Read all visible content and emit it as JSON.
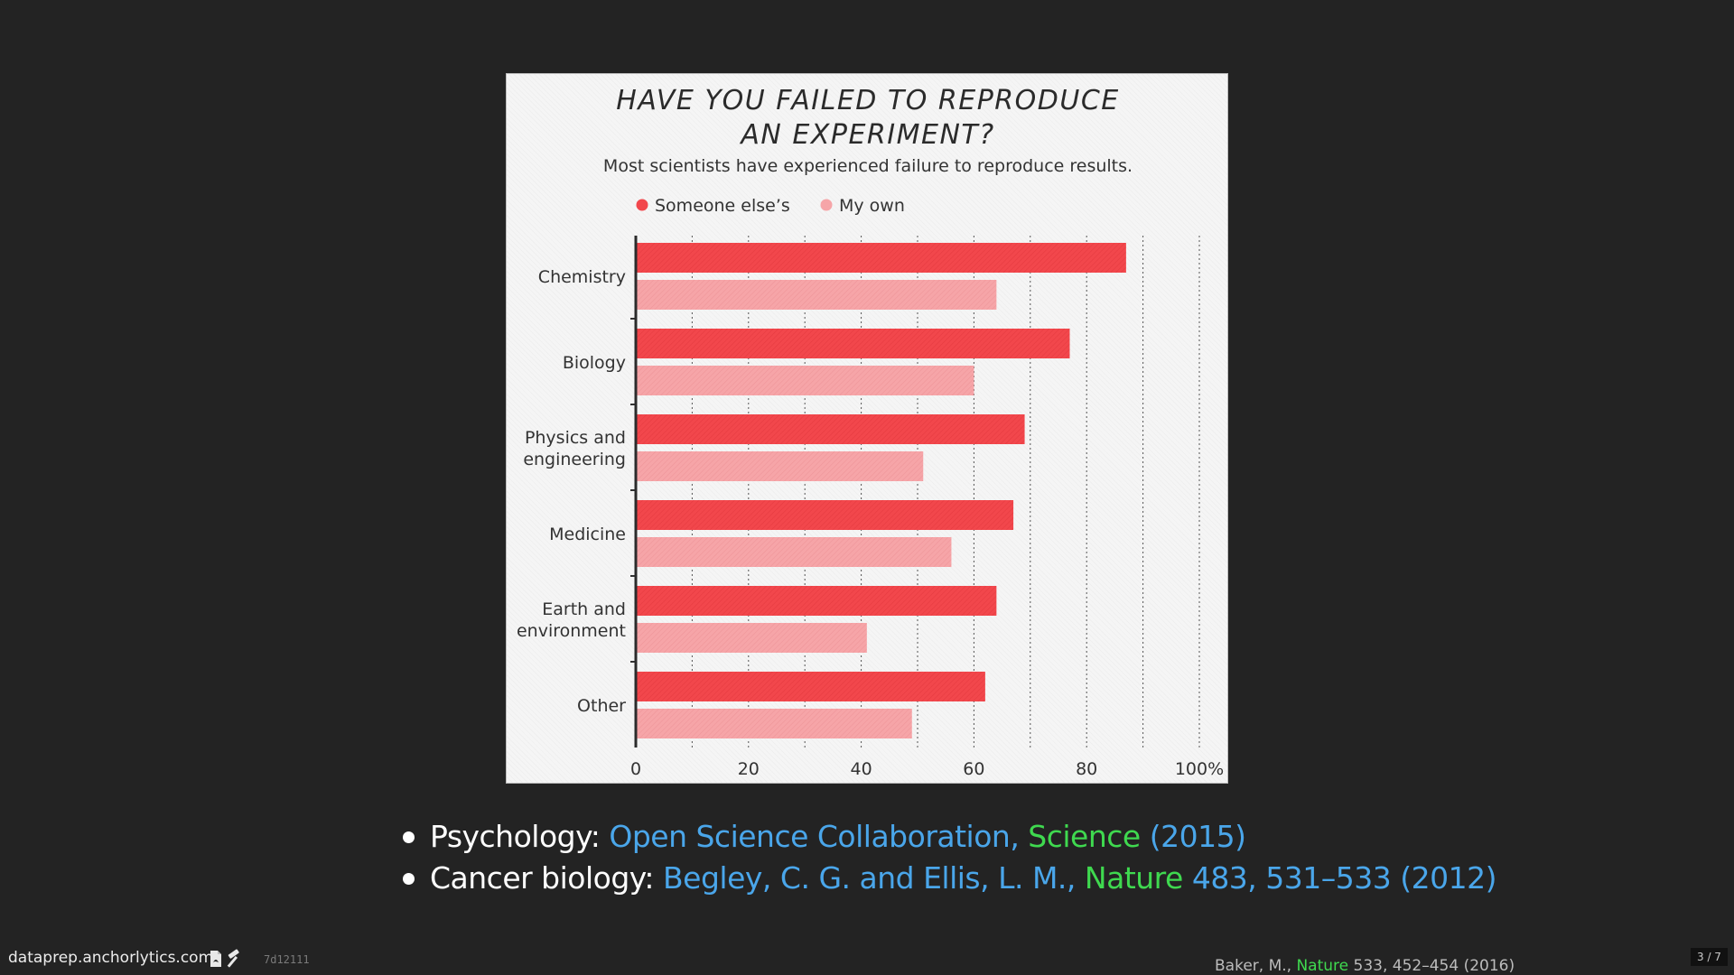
{
  "chart_data": {
    "type": "bar",
    "orientation": "horizontal",
    "title": "HAVE YOU FAILED TO REPRODUCE AN EXPERIMENT?",
    "title_lines": [
      "HAVE YOU FAILED TO REPRODUCE",
      "AN EXPERIMENT?"
    ],
    "subtitle": "Most scientists have experienced failure to reproduce results.",
    "categories": [
      [
        "Chemistry"
      ],
      [
        "Biology"
      ],
      [
        "Physics and",
        "engineering"
      ],
      [
        "Medicine"
      ],
      [
        "Earth and",
        "environment"
      ],
      [
        "Other"
      ]
    ],
    "series": [
      {
        "name": "Someone else’s",
        "color": "#f2474c",
        "values": [
          87,
          77,
          69,
          67,
          64,
          62
        ]
      },
      {
        "name": "My own",
        "color": "#f6a5a8",
        "values": [
          64,
          60,
          51,
          56,
          41,
          49
        ]
      }
    ],
    "xlim": [
      0,
      100
    ],
    "xticks": [
      0,
      20,
      40,
      60,
      80,
      100
    ],
    "xtick_labels": [
      "0",
      "20",
      "40",
      "60",
      "80",
      "100%"
    ],
    "grid": true,
    "legend_position": "top"
  },
  "bullets": [
    {
      "label": "Psychology:",
      "parts": [
        {
          "text": "Open Science Collaboration, ",
          "color": "#4aa6ea"
        },
        {
          "text": "Science",
          "color": "#3fd94f"
        },
        {
          "text": " (2015)",
          "color": "#4aa6ea"
        }
      ]
    },
    {
      "label": "Cancer biology:",
      "parts": [
        {
          "text": "Begley, C. G. and Ellis, L. M., ",
          "color": "#4aa6ea"
        },
        {
          "text": "Nature",
          "color": "#3fd94f"
        },
        {
          "text": " 483, 531–533 (2012)",
          "color": "#4aa6ea"
        }
      ]
    }
  ],
  "footer": {
    "site": "dataprep.anchorlytics.com",
    "icons": [
      "pdf-icon",
      "hammer-icon"
    ],
    "hash": "7d12111",
    "citation": {
      "author": "Baker, M., ",
      "journal": "Nature",
      "rest": " 533, 452–454 (2016)"
    },
    "page": "3 / 7"
  }
}
